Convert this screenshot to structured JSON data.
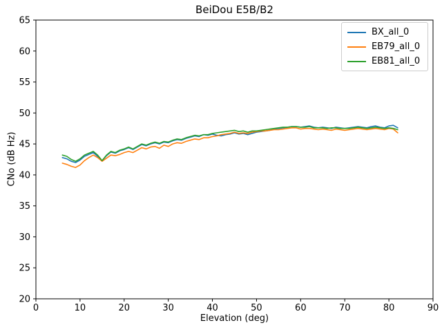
{
  "chart_data": {
    "type": "line",
    "title": "BeiDou E5B/B2",
    "xlabel": "Elevation (deg)",
    "ylabel": "CNo (dB Hz)",
    "xlim": [
      0,
      90
    ],
    "ylim": [
      20,
      65
    ],
    "xticks": [
      0,
      10,
      20,
      30,
      40,
      50,
      60,
      70,
      80,
      90
    ],
    "yticks": [
      20,
      25,
      30,
      35,
      40,
      45,
      50,
      55,
      60,
      65
    ],
    "grid": false,
    "legend_position": "upper right",
    "x": [
      6,
      7,
      8,
      9,
      10,
      11,
      12,
      13,
      14,
      15,
      16,
      17,
      18,
      19,
      20,
      21,
      22,
      23,
      24,
      25,
      26,
      27,
      28,
      29,
      30,
      31,
      32,
      33,
      34,
      35,
      36,
      37,
      38,
      39,
      40,
      41,
      42,
      43,
      44,
      45,
      46,
      47,
      48,
      49,
      50,
      51,
      52,
      53,
      54,
      55,
      56,
      57,
      58,
      59,
      60,
      61,
      62,
      63,
      64,
      65,
      66,
      67,
      68,
      69,
      70,
      71,
      72,
      73,
      74,
      75,
      76,
      77,
      78,
      79,
      80,
      81,
      82
    ],
    "series": [
      {
        "name": "BX_all_0",
        "color": "#1f77b4",
        "values": [
          42.8,
          42.6,
          42.2,
          42.0,
          42.4,
          43.0,
          43.3,
          43.6,
          43.0,
          42.3,
          43.1,
          43.7,
          43.5,
          43.9,
          44.1,
          44.4,
          44.1,
          44.5,
          44.9,
          44.7,
          45.0,
          45.2,
          45.0,
          45.3,
          45.2,
          45.5,
          45.7,
          45.6,
          45.9,
          46.1,
          46.3,
          46.2,
          46.5,
          46.4,
          46.6,
          46.4,
          46.3,
          46.5,
          46.6,
          46.8,
          46.6,
          46.7,
          46.5,
          46.7,
          46.9,
          47.0,
          47.1,
          47.2,
          47.4,
          47.5,
          47.6,
          47.7,
          47.8,
          47.8,
          47.7,
          47.8,
          47.9,
          47.7,
          47.6,
          47.7,
          47.6,
          47.5,
          47.7,
          47.6,
          47.5,
          47.6,
          47.7,
          47.8,
          47.7,
          47.6,
          47.8,
          47.9,
          47.7,
          47.6,
          47.9,
          48.0,
          47.6
        ]
      },
      {
        "name": "EB79_all_0",
        "color": "#ff7f0e",
        "values": [
          41.9,
          41.7,
          41.4,
          41.2,
          41.6,
          42.3,
          42.8,
          43.2,
          42.8,
          42.2,
          42.7,
          43.2,
          43.1,
          43.3,
          43.6,
          43.8,
          43.6,
          44.0,
          44.4,
          44.2,
          44.5,
          44.6,
          44.3,
          44.8,
          44.6,
          45.0,
          45.2,
          45.1,
          45.4,
          45.6,
          45.8,
          45.7,
          46.0,
          46.0,
          46.2,
          46.3,
          46.5,
          46.6,
          46.7,
          46.9,
          46.7,
          46.8,
          46.7,
          46.9,
          47.0,
          47.1,
          47.1,
          47.2,
          47.3,
          47.3,
          47.4,
          47.5,
          47.6,
          47.6,
          47.4,
          47.5,
          47.5,
          47.4,
          47.3,
          47.4,
          47.3,
          47.2,
          47.4,
          47.3,
          47.2,
          47.3,
          47.4,
          47.5,
          47.4,
          47.3,
          47.4,
          47.5,
          47.4,
          47.3,
          47.5,
          47.4,
          46.8
        ]
      },
      {
        "name": "EB81_all_0",
        "color": "#2ca02c",
        "values": [
          43.2,
          43.0,
          42.5,
          42.2,
          42.6,
          43.2,
          43.5,
          43.8,
          43.2,
          42.3,
          43.2,
          43.8,
          43.6,
          44.0,
          44.2,
          44.5,
          44.2,
          44.6,
          45.0,
          44.8,
          45.1,
          45.3,
          45.1,
          45.4,
          45.3,
          45.6,
          45.8,
          45.7,
          46.0,
          46.2,
          46.4,
          46.3,
          46.5,
          46.5,
          46.7,
          46.8,
          46.9,
          47.0,
          47.1,
          47.2,
          47.0,
          47.1,
          46.9,
          47.1,
          47.1,
          47.2,
          47.3,
          47.4,
          47.5,
          47.6,
          47.7,
          47.7,
          47.8,
          47.8,
          47.7,
          47.7,
          47.8,
          47.6,
          47.6,
          47.6,
          47.5,
          47.6,
          47.6,
          47.5,
          47.5,
          47.5,
          47.6,
          47.7,
          47.6,
          47.5,
          47.6,
          47.7,
          47.6,
          47.5,
          47.6,
          47.5,
          47.3
        ]
      }
    ]
  }
}
